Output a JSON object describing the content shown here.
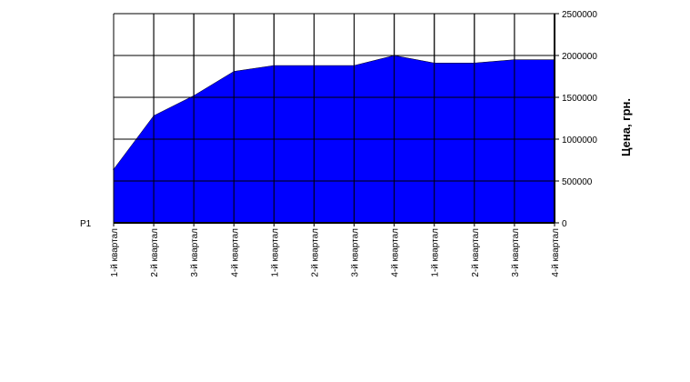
{
  "chart_data": {
    "type": "area",
    "categories": [
      "1-й квартал",
      "2-й квартал",
      "3-й квартал",
      "4-й квартал",
      "1-й квартал",
      "2-й квартал",
      "3-й квартал",
      "4-й квартал",
      "1-й квартал",
      "2-й квартал",
      "3-й квартал",
      "4-й квартал"
    ],
    "series": [
      {
        "name": "Р1",
        "values": [
          640000,
          1280000,
          1520000,
          1810000,
          1880000,
          1880000,
          1880000,
          2000000,
          1910000,
          1910000,
          1950000,
          1950000
        ],
        "color": "#0000ff"
      }
    ],
    "ylabel": "Цена, грн.",
    "yticks": [
      "0",
      "500000",
      "1000000",
      "1500000",
      "2000000",
      "2500000"
    ],
    "ylim": [
      0,
      2500000
    ],
    "grid": true,
    "y_axis_side": "right",
    "legend": "none"
  }
}
